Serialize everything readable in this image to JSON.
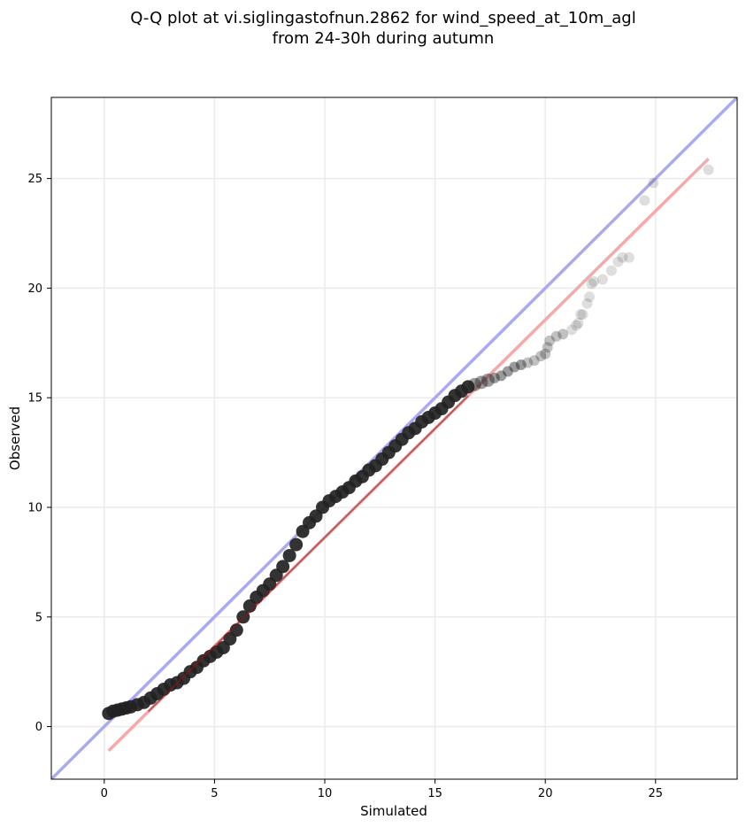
{
  "chart_data": {
    "type": "scatter",
    "title": "Q-Q plot at vi.siglingastofnun.2862 for wind_speed_at_10m_agl",
    "subtitle": "from 24-30h during autumn",
    "xlabel": "Simulated",
    "ylabel": "Observed",
    "xlim": [
      -2.4,
      28.7
    ],
    "ylim": [
      -2.4,
      28.7
    ],
    "xticks": [
      "0",
      "5",
      "10",
      "15",
      "20",
      "25"
    ],
    "yticks": [
      "0",
      "5",
      "10",
      "15",
      "20",
      "25"
    ],
    "grid": true,
    "colors": {
      "points": "#222222",
      "identity_line": "#aaaaf0",
      "fit_line": "#f5a9a9",
      "fit_line_dense": "#8b1a1a"
    },
    "identity_line": {
      "x": [
        -2.4,
        28.7
      ],
      "y": [
        -2.4,
        28.7
      ]
    },
    "fit_line": {
      "x": [
        0.2,
        27.4
      ],
      "y": [
        -1.1,
        25.9
      ]
    },
    "points": {
      "x": [
        0.2,
        0.4,
        0.6,
        0.8,
        1.0,
        1.2,
        1.5,
        1.8,
        2.1,
        2.4,
        2.7,
        3.0,
        3.3,
        3.6,
        3.9,
        4.2,
        4.5,
        4.8,
        5.1,
        5.4,
        5.7,
        6.0,
        6.3,
        6.6,
        6.9,
        7.2,
        7.5,
        7.8,
        8.1,
        8.4,
        8.7,
        9.0,
        9.3,
        9.6,
        9.9,
        10.2,
        10.5,
        10.8,
        11.1,
        11.4,
        11.7,
        12.0,
        12.3,
        12.6,
        12.9,
        13.2,
        13.5,
        13.8,
        14.1,
        14.4,
        14.7,
        15.0,
        15.3,
        15.6,
        15.9,
        16.2,
        16.5,
        16.8,
        17.1,
        17.4,
        17.7,
        18.0,
        18.3,
        18.6,
        18.9,
        19.2,
        19.5,
        19.8,
        20.0,
        20.1,
        20.2,
        20.5,
        20.8,
        21.2,
        21.4,
        21.5,
        21.6,
        21.7,
        21.9,
        22.0,
        22.1,
        22.2,
        22.6,
        23.0,
        23.3,
        23.5,
        23.8,
        24.5,
        24.9,
        27.4
      ],
      "y": [
        0.6,
        0.7,
        0.75,
        0.8,
        0.85,
        0.9,
        1.0,
        1.1,
        1.3,
        1.5,
        1.7,
        1.9,
        2.0,
        2.2,
        2.5,
        2.7,
        3.0,
        3.2,
        3.4,
        3.6,
        4.0,
        4.4,
        5.0,
        5.5,
        5.9,
        6.2,
        6.5,
        6.9,
        7.3,
        7.8,
        8.3,
        8.9,
        9.3,
        9.6,
        10.0,
        10.3,
        10.5,
        10.7,
        10.9,
        11.2,
        11.4,
        11.7,
        11.9,
        12.2,
        12.5,
        12.8,
        13.1,
        13.4,
        13.6,
        13.9,
        14.1,
        14.3,
        14.5,
        14.8,
        15.1,
        15.3,
        15.5,
        15.6,
        15.7,
        15.8,
        15.9,
        16.0,
        16.2,
        16.4,
        16.5,
        16.6,
        16.7,
        16.9,
        17.0,
        17.3,
        17.6,
        17.8,
        17.9,
        18.1,
        18.3,
        18.4,
        18.8,
        18.8,
        19.3,
        19.6,
        20.2,
        20.3,
        20.4,
        20.8,
        21.2,
        21.4,
        21.4,
        24.0,
        24.8,
        25.4
      ]
    }
  }
}
